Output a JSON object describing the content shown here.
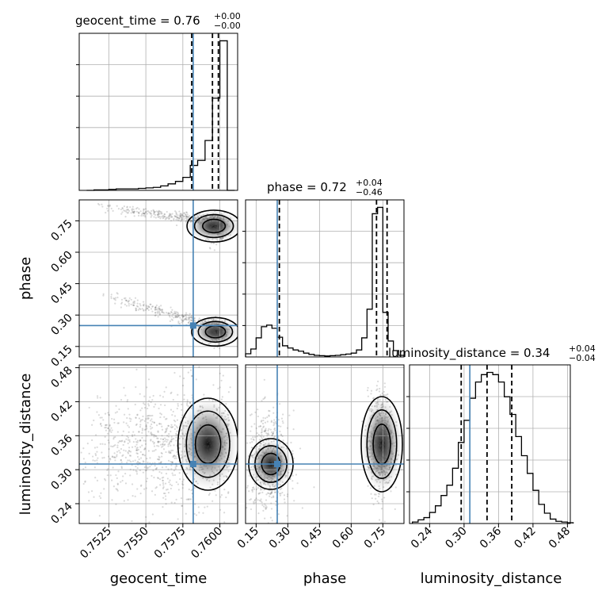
{
  "chart_data": {
    "type": "corner",
    "parameters": [
      "geocent_time",
      "phase",
      "luminosity_distance"
    ],
    "injected": {
      "geocent_time": 0.7582,
      "phase": 0.25,
      "luminosity_distance": 0.31
    },
    "titles": [
      {
        "param": "geocent_time",
        "text": "geocent_time = 0.76",
        "sup": "+0.00",
        "sub": "−0.00"
      },
      {
        "param": "phase",
        "text": "phase = 0.72",
        "sup": "+0.04",
        "sub": "−0.46"
      },
      {
        "param": "luminosity_distance",
        "text": "luminosity_distance = 0.34",
        "sup": "+0.04",
        "sub": "−0.04"
      }
    ],
    "axes": {
      "geocent_time": {
        "label": "geocent_time",
        "range": [
          0.7505,
          0.7612
        ],
        "ticks": [
          0.7525,
          0.755,
          0.7575,
          0.76
        ],
        "tick_labels": [
          "0.7525",
          "0.7550",
          "0.7575",
          "0.7600"
        ]
      },
      "phase": {
        "label": "phase",
        "range": [
          0.1,
          0.85
        ],
        "ticks": [
          0.15,
          0.3,
          0.45,
          0.6,
          0.75
        ],
        "tick_labels": [
          "0.15",
          "0.30",
          "0.45",
          "0.60",
          "0.75"
        ]
      },
      "luminosity_distance": {
        "label": "luminosity_distance",
        "range": [
          0.205,
          0.485
        ],
        "ticks": [
          0.24,
          0.3,
          0.36,
          0.42,
          0.48
        ],
        "tick_labels": [
          "0.24",
          "0.30",
          "0.36",
          "0.42",
          "0.48"
        ]
      }
    },
    "histograms": [
      {
        "param": "geocent_time",
        "quantile_lines": [
          0.7581,
          0.7595,
          0.7599
        ],
        "bins": [
          0.751,
          0.7515,
          0.752,
          0.7525,
          0.753,
          0.7535,
          0.754,
          0.7545,
          0.755,
          0.7555,
          0.756,
          0.7565,
          0.757,
          0.7575,
          0.758,
          0.7585,
          0.759,
          0.7595,
          0.76,
          0.7605
        ],
        "counts": [
          0,
          1,
          1,
          2,
          3,
          3,
          3,
          4,
          5,
          6,
          9,
          13,
          18,
          26,
          50,
          60,
          100,
          185,
          300,
          0
        ]
      },
      {
        "param": "phase",
        "quantile_lines": [
          0.26,
          0.72,
          0.77
        ],
        "bins": [
          0.1,
          0.125,
          0.15,
          0.175,
          0.2,
          0.225,
          0.25,
          0.275,
          0.3,
          0.325,
          0.35,
          0.375,
          0.4,
          0.425,
          0.45,
          0.475,
          0.5,
          0.525,
          0.55,
          0.575,
          0.6,
          0.625,
          0.65,
          0.675,
          0.7,
          0.725,
          0.75,
          0.775,
          0.8,
          0.825
        ],
        "counts": [
          10,
          25,
          60,
          95,
          100,
          90,
          62,
          35,
          28,
          22,
          18,
          12,
          8,
          5,
          4,
          3,
          4,
          5,
          7,
          9,
          12,
          22,
          60,
          150,
          450,
          470,
          140,
          50,
          20,
          5
        ]
      },
      {
        "param": "luminosity_distance",
        "quantile_lines": [
          0.295,
          0.34,
          0.383
        ],
        "bins": [
          0.21,
          0.22,
          0.23,
          0.24,
          0.25,
          0.26,
          0.27,
          0.28,
          0.29,
          0.3,
          0.31,
          0.32,
          0.33,
          0.34,
          0.35,
          0.36,
          0.37,
          0.38,
          0.39,
          0.4,
          0.41,
          0.42,
          0.43,
          0.44,
          0.45,
          0.46,
          0.47,
          0.48
        ],
        "counts": [
          2,
          5,
          8,
          15,
          24,
          38,
          52,
          75,
          110,
          140,
          170,
          192,
          202,
          205,
          202,
          192,
          172,
          148,
          118,
          92,
          68,
          45,
          26,
          14,
          6,
          3,
          2,
          1
        ]
      }
    ]
  }
}
